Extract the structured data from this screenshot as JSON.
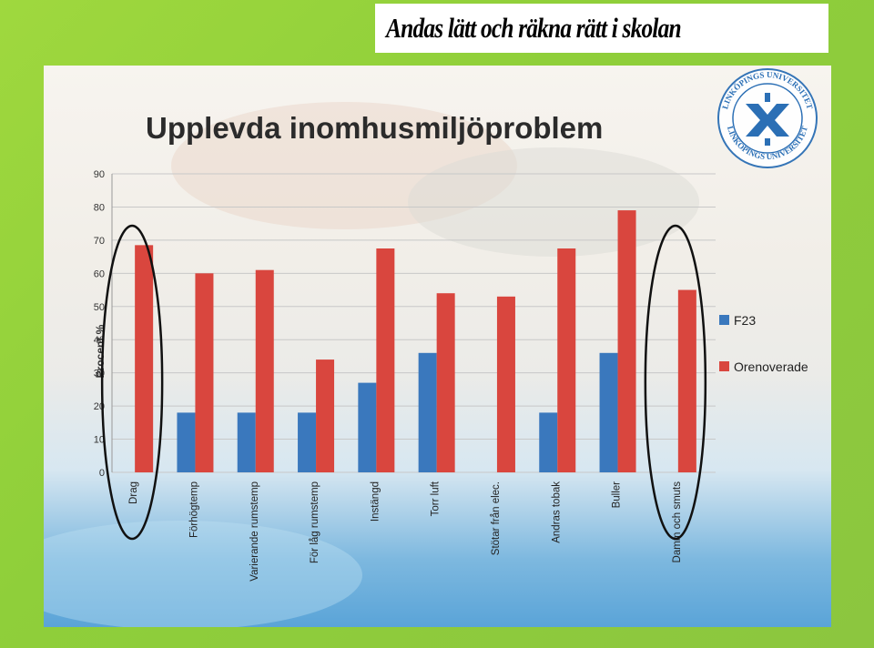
{
  "header": {
    "title": "Andas lätt och räkna rätt i skolan"
  },
  "logo": {
    "text_top": "LINKÖPINGS UNIVERSITET",
    "text_bottom": "LINKÖPINGS UNIVERSITET"
  },
  "colors": {
    "f23": "#3a78bd",
    "orenoverade": "#d9463e",
    "grid": "#c8c8c8",
    "axis_text": "#333333"
  },
  "chart_data": {
    "type": "bar",
    "title": "Upplevda inomhusmiljöproblem",
    "ylabel": "Procent %",
    "xlabel": "",
    "ylim": [
      0,
      90
    ],
    "yticks": [
      0,
      10,
      20,
      30,
      40,
      50,
      60,
      70,
      80,
      90
    ],
    "categories": [
      "Drag",
      "Förhögtemp",
      "Varierande rumstemp",
      "För låg rumstemp",
      "Instängd",
      "Torr luft",
      "Stötar från elec.",
      "Andras tobak",
      "Buller",
      "Damm och smuts"
    ],
    "series": [
      {
        "name": "F23",
        "color": "#3a78bd",
        "values": [
          0,
          18,
          18,
          18,
          27,
          36,
          0,
          18,
          36,
          0
        ]
      },
      {
        "name": "Orenoverade",
        "color": "#d9463e",
        "values": [
          68.5,
          60,
          61,
          34,
          67.5,
          54,
          53,
          67.5,
          79,
          55
        ]
      }
    ],
    "legend": "right",
    "grid": true,
    "highlighted_categories": [
      "Drag",
      "Damm och smuts"
    ]
  }
}
